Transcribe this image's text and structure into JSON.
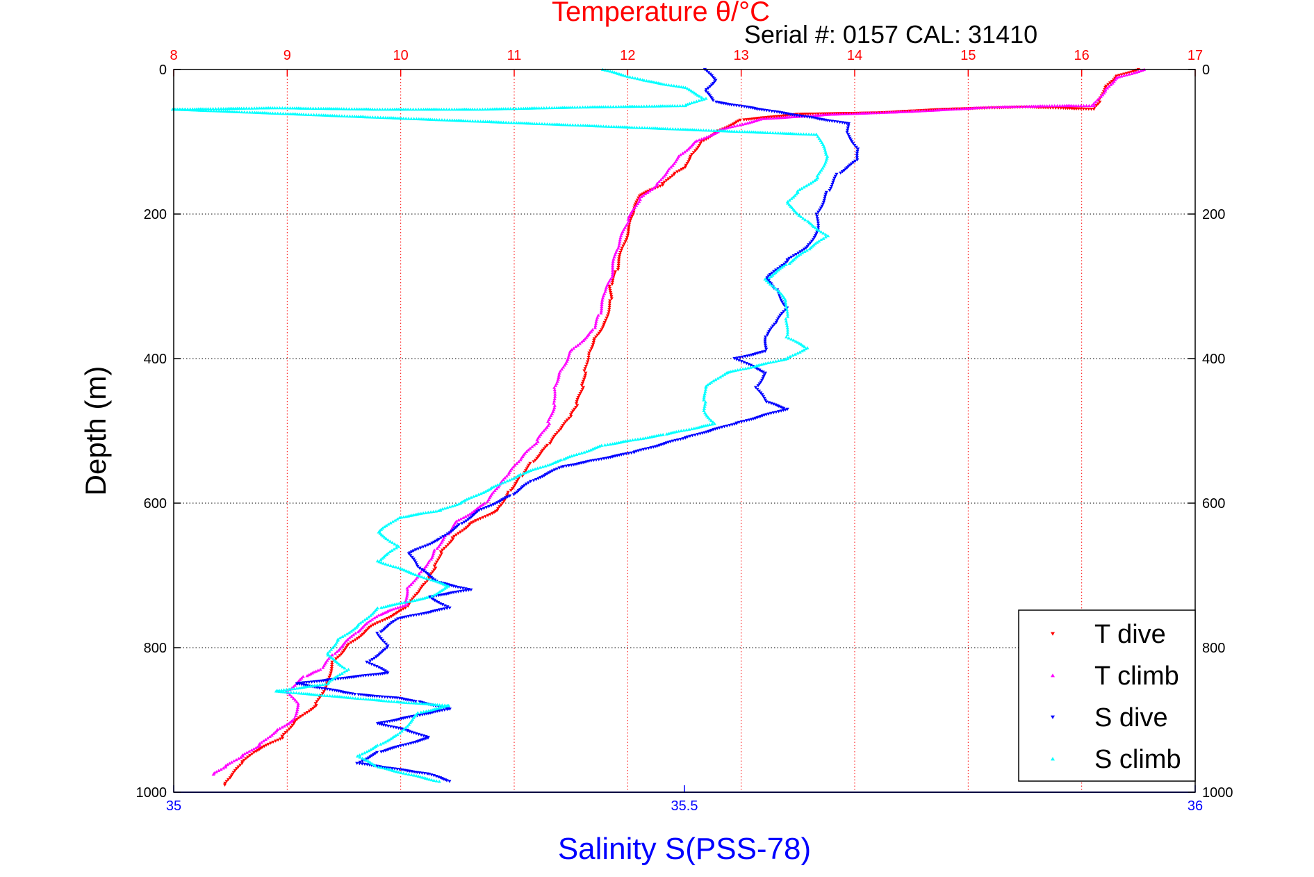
{
  "chart_data": {
    "type": "scatter",
    "title": "Temperature θ/°C",
    "subtitle": "Serial #: 0157  CAL: 31410",
    "ylabel": "Depth (m)",
    "xlabel_bottom": "Salinity S(PSS-78)",
    "x_temperature": {
      "range": [
        8,
        17
      ],
      "ticks": [
        8,
        9,
        10,
        11,
        12,
        13,
        14,
        15,
        16,
        17
      ],
      "color": "#ff0000"
    },
    "x_salinity": {
      "range": [
        35,
        36
      ],
      "ticks": [
        "35",
        "35.5",
        "36"
      ],
      "color": "#0000ff"
    },
    "y_depth": {
      "range": [
        0,
        1000
      ],
      "reversed": true,
      "ticks": [
        0,
        200,
        400,
        600,
        800,
        1000
      ]
    },
    "grid": true,
    "legend": {
      "placement": "bottom-right",
      "entries": [
        {
          "label": "T dive",
          "color": "#ff0000",
          "marker": "triangle-down"
        },
        {
          "label": "T climb",
          "color": "#ff00ff",
          "marker": "triangle-up"
        },
        {
          "label": "S dive",
          "color": "#0000ff",
          "marker": "triangle-down"
        },
        {
          "label": "S climb",
          "color": "#00ffff",
          "marker": "triangle-up"
        }
      ]
    },
    "series": [
      {
        "name": "T dive",
        "axis": "temperature",
        "color": "#ff0000",
        "marker": "triangle-down",
        "points": [
          [
            16.5,
            0
          ],
          [
            16.3,
            10
          ],
          [
            16.2,
            25
          ],
          [
            16.15,
            45
          ],
          [
            16.1,
            55
          ],
          [
            15.5,
            52
          ],
          [
            14.8,
            55
          ],
          [
            14.2,
            60
          ],
          [
            13.5,
            62
          ],
          [
            13.0,
            70
          ],
          [
            12.8,
            85
          ],
          [
            12.65,
            100
          ],
          [
            12.55,
            120
          ],
          [
            12.5,
            135
          ],
          [
            12.4,
            145
          ],
          [
            12.3,
            160
          ],
          [
            12.1,
            175
          ],
          [
            12.05,
            200
          ],
          [
            11.95,
            250
          ],
          [
            11.9,
            280
          ],
          [
            11.85,
            300
          ],
          [
            11.85,
            320
          ],
          [
            11.8,
            350
          ],
          [
            11.7,
            375
          ],
          [
            11.65,
            395
          ],
          [
            11.62,
            420
          ],
          [
            11.6,
            440
          ],
          [
            11.55,
            465
          ],
          [
            11.5,
            480
          ],
          [
            11.4,
            500
          ],
          [
            11.3,
            520
          ],
          [
            11.15,
            545
          ],
          [
            11.05,
            565
          ],
          [
            10.95,
            585
          ],
          [
            10.85,
            610
          ],
          [
            10.6,
            630
          ],
          [
            10.45,
            650
          ],
          [
            10.35,
            670
          ],
          [
            10.3,
            690
          ],
          [
            10.25,
            705
          ],
          [
            10.15,
            725
          ],
          [
            10.05,
            745
          ],
          [
            9.75,
            770
          ],
          [
            9.55,
            795
          ],
          [
            9.4,
            820
          ],
          [
            9.35,
            850
          ],
          [
            9.25,
            880
          ],
          [
            9.05,
            905
          ],
          [
            8.95,
            925
          ],
          [
            8.7,
            945
          ],
          [
            8.6,
            960
          ],
          [
            8.5,
            980
          ],
          [
            8.45,
            990
          ]
        ]
      },
      {
        "name": "T climb",
        "axis": "temperature",
        "color": "#ff00ff",
        "marker": "triangle-up",
        "points": [
          [
            16.55,
            0
          ],
          [
            16.3,
            12
          ],
          [
            16.2,
            30
          ],
          [
            16.1,
            50
          ],
          [
            15.8,
            50
          ],
          [
            15.2,
            52
          ],
          [
            14.5,
            58
          ],
          [
            13.8,
            62
          ],
          [
            13.2,
            68
          ],
          [
            12.85,
            82
          ],
          [
            12.6,
            100
          ],
          [
            12.45,
            120
          ],
          [
            12.35,
            140
          ],
          [
            12.25,
            160
          ],
          [
            12.1,
            180
          ],
          [
            12.0,
            210
          ],
          [
            11.9,
            250
          ],
          [
            11.85,
            290
          ],
          [
            11.8,
            310
          ],
          [
            11.75,
            340
          ],
          [
            11.7,
            360
          ],
          [
            11.5,
            390
          ],
          [
            11.4,
            420
          ],
          [
            11.35,
            440
          ],
          [
            11.35,
            465
          ],
          [
            11.3,
            490
          ],
          [
            11.2,
            515
          ],
          [
            11.05,
            540
          ],
          [
            10.95,
            560
          ],
          [
            10.85,
            580
          ],
          [
            10.75,
            600
          ],
          [
            10.5,
            625
          ],
          [
            10.4,
            645
          ],
          [
            10.3,
            665
          ],
          [
            10.25,
            680
          ],
          [
            10.15,
            700
          ],
          [
            10.05,
            720
          ],
          [
            10.05,
            740
          ],
          [
            9.8,
            755
          ],
          [
            9.6,
            780
          ],
          [
            9.4,
            810
          ],
          [
            9.3,
            830
          ],
          [
            9.15,
            840
          ],
          [
            9.0,
            860
          ],
          [
            9.1,
            880
          ],
          [
            9.05,
            900
          ],
          [
            8.9,
            915
          ],
          [
            8.75,
            935
          ],
          [
            8.6,
            950
          ],
          [
            8.45,
            965
          ],
          [
            8.35,
            975
          ]
        ]
      },
      {
        "name": "S dive",
        "axis": "salinity",
        "color": "#0000ff",
        "marker": "triangle-down",
        "points": [
          [
            35.52,
            0
          ],
          [
            35.53,
            15
          ],
          [
            35.52,
            30
          ],
          [
            35.53,
            45
          ],
          [
            35.66,
            75
          ],
          [
            35.66,
            90
          ],
          [
            35.67,
            110
          ],
          [
            35.67,
            125
          ],
          [
            35.65,
            145
          ],
          [
            35.64,
            170
          ],
          [
            35.63,
            200
          ],
          [
            35.63,
            225
          ],
          [
            35.62,
            245
          ],
          [
            35.6,
            265
          ],
          [
            35.58,
            290
          ],
          [
            35.59,
            305
          ],
          [
            35.6,
            330
          ],
          [
            35.59,
            350
          ],
          [
            35.58,
            370
          ],
          [
            35.58,
            390
          ],
          [
            35.55,
            400
          ],
          [
            35.58,
            420
          ],
          [
            35.57,
            440
          ],
          [
            35.58,
            460
          ],
          [
            35.6,
            470
          ],
          [
            35.55,
            490
          ],
          [
            35.5,
            510
          ],
          [
            35.45,
            530
          ],
          [
            35.38,
            550
          ],
          [
            35.35,
            570
          ],
          [
            35.33,
            590
          ],
          [
            35.3,
            610
          ],
          [
            35.28,
            630
          ],
          [
            35.26,
            650
          ],
          [
            35.23,
            670
          ],
          [
            35.24,
            690
          ],
          [
            35.26,
            710
          ],
          [
            35.29,
            720
          ],
          [
            35.25,
            730
          ],
          [
            35.27,
            745
          ],
          [
            35.22,
            760
          ],
          [
            35.2,
            780
          ],
          [
            35.21,
            800
          ],
          [
            35.19,
            820
          ],
          [
            35.21,
            835
          ],
          [
            35.15,
            845
          ],
          [
            35.12,
            850
          ],
          [
            35.18,
            865
          ],
          [
            35.22,
            870
          ],
          [
            35.24,
            875
          ],
          [
            35.27,
            885
          ],
          [
            35.2,
            905
          ],
          [
            35.23,
            915
          ],
          [
            35.25,
            925
          ],
          [
            35.2,
            945
          ],
          [
            35.18,
            960
          ],
          [
            35.25,
            975
          ],
          [
            35.27,
            985
          ]
        ]
      },
      {
        "name": "S climb",
        "axis": "salinity",
        "color": "#00ffff",
        "marker": "triangle-up",
        "points": [
          [
            35.42,
            0
          ],
          [
            35.46,
            15
          ],
          [
            35.5,
            25
          ],
          [
            35.52,
            40
          ],
          [
            35.5,
            50
          ],
          [
            35.4,
            52
          ],
          [
            35.3,
            55
          ],
          [
            35.2,
            55
          ],
          [
            35.1,
            53
          ],
          [
            35.0,
            55
          ],
          [
            35.63,
            90
          ],
          [
            35.64,
            120
          ],
          [
            35.63,
            150
          ],
          [
            35.61,
            170
          ],
          [
            35.6,
            185
          ],
          [
            35.62,
            210
          ],
          [
            35.64,
            230
          ],
          [
            35.62,
            250
          ],
          [
            35.6,
            270
          ],
          [
            35.58,
            290
          ],
          [
            35.6,
            320
          ],
          [
            35.6,
            345
          ],
          [
            35.6,
            370
          ],
          [
            35.62,
            385
          ],
          [
            35.6,
            400
          ],
          [
            35.54,
            420
          ],
          [
            35.52,
            440
          ],
          [
            35.52,
            460
          ],
          [
            35.52,
            475
          ],
          [
            35.53,
            490
          ],
          [
            35.48,
            505
          ],
          [
            35.42,
            520
          ],
          [
            35.38,
            540
          ],
          [
            35.34,
            560
          ],
          [
            35.31,
            580
          ],
          [
            35.28,
            600
          ],
          [
            35.26,
            610
          ],
          [
            35.22,
            620
          ],
          [
            35.2,
            640
          ],
          [
            35.22,
            660
          ],
          [
            35.2,
            680
          ],
          [
            35.24,
            700
          ],
          [
            35.27,
            715
          ],
          [
            35.25,
            730
          ],
          [
            35.2,
            745
          ],
          [
            35.18,
            770
          ],
          [
            35.16,
            790
          ],
          [
            35.15,
            810
          ],
          [
            35.17,
            830
          ],
          [
            35.15,
            850
          ],
          [
            35.1,
            860
          ],
          [
            35.22,
            875
          ],
          [
            35.27,
            880
          ],
          [
            35.24,
            890
          ],
          [
            35.22,
            920
          ],
          [
            35.2,
            935
          ],
          [
            35.18,
            950
          ],
          [
            35.2,
            965
          ],
          [
            35.26,
            985
          ]
        ]
      }
    ]
  }
}
